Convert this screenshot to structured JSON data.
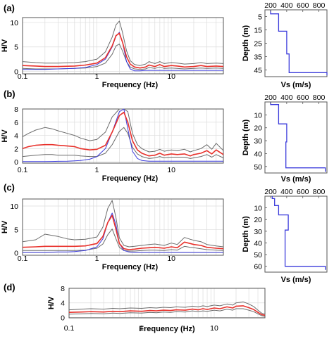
{
  "figure": {
    "colors": {
      "mean": "#e8312b",
      "std": "#6b6b6b",
      "theoretical": "#3b3bdb",
      "profile": "#3b3bdb"
    }
  },
  "chart_data": [
    {
      "panel": "(a)",
      "type": "line",
      "xscale": "log",
      "xlim": [
        0.1,
        50
      ],
      "ylim": [
        -0.5,
        11
      ],
      "xlabel": "Frequency (Hz)",
      "ylabel": "H/V",
      "xticks": [
        "0.1",
        "1",
        "10"
      ],
      "yticks": [
        "0",
        "5",
        "10"
      ],
      "x": [
        0.1,
        0.15,
        0.2,
        0.3,
        0.5,
        0.7,
        1.0,
        1.3,
        1.6,
        1.8,
        2.0,
        2.2,
        2.5,
        2.8,
        3.2,
        3.8,
        4.5,
        5,
        6,
        7,
        8,
        10,
        12,
        15,
        20,
        25,
        30,
        40,
        50
      ],
      "series": [
        {
          "role": "mean",
          "values": [
            1.2,
            1.1,
            1.0,
            1.0,
            1.1,
            1.3,
            1.7,
            2.8,
            5.2,
            7.3,
            7.8,
            6.0,
            3.0,
            1.5,
            0.9,
            0.7,
            0.9,
            1.3,
            1.0,
            1.4,
            1.0,
            1.2,
            1.1,
            0.9,
            1.0,
            1.2,
            1.0,
            1.1,
            1.0
          ]
        },
        {
          "role": "std-upper",
          "values": [
            2.0,
            1.8,
            1.7,
            1.7,
            1.8,
            2.0,
            2.5,
            4.0,
            7.0,
            9.5,
            10.3,
            8.0,
            4.2,
            2.2,
            1.4,
            1.2,
            1.5,
            2.0,
            1.6,
            2.0,
            1.6,
            1.8,
            1.7,
            1.5,
            1.6,
            1.8,
            1.6,
            1.7,
            1.6
          ]
        },
        {
          "role": "std-lower",
          "values": [
            0.6,
            0.5,
            0.5,
            0.5,
            0.6,
            0.7,
            1.0,
            1.7,
            3.5,
            5.2,
            5.6,
            4.2,
            2.0,
            0.9,
            0.5,
            0.4,
            0.5,
            0.8,
            0.6,
            0.9,
            0.6,
            0.7,
            0.6,
            0.5,
            0.6,
            0.7,
            0.6,
            0.7,
            0.6
          ]
        },
        {
          "role": "theoretical",
          "values": [
            0.4,
            0.4,
            0.4,
            0.5,
            0.6,
            0.8,
            1.4,
            2.5,
            5.0,
            7.2,
            8.0,
            6.0,
            2.0,
            0.5,
            0.1,
            0.1,
            0.2,
            0.2,
            0.2,
            0.2,
            0.2,
            0.2,
            0.2,
            0.2,
            0.2,
            0.2,
            0.2,
            0.2,
            0.2
          ]
        }
      ],
      "profile": {
        "xlabel": "Vs (m/s)",
        "ylabel": "Depth (m)",
        "xticks": [
          "200",
          "400",
          "600",
          "800"
        ],
        "yticks": [
          "5",
          "15",
          "25",
          "35",
          "45"
        ],
        "xlim": [
          130,
          900
        ],
        "ylim": [
          0,
          50
        ],
        "vs": [
          200,
          200,
          300,
          300,
          400,
          400,
          430,
          430,
          900,
          900
        ],
        "depth": [
          0,
          3,
          3,
          16,
          16,
          33,
          33,
          47,
          47,
          49
        ]
      }
    },
    {
      "panel": "(b)",
      "type": "line",
      "xscale": "log",
      "xlim": [
        0.1,
        50
      ],
      "ylim": [
        -0.2,
        8
      ],
      "xlabel": "Frequency (Hz)",
      "ylabel": "H/V",
      "xticks": [
        "0.1",
        "1",
        "10"
      ],
      "yticks": [
        "0",
        "2",
        "4",
        "6",
        "8"
      ],
      "x": [
        0.1,
        0.12,
        0.15,
        0.2,
        0.25,
        0.3,
        0.4,
        0.5,
        0.6,
        0.8,
        1.0,
        1.3,
        1.6,
        2.0,
        2.3,
        2.6,
        3.0,
        3.5,
        4,
        5,
        6,
        7,
        8,
        10,
        12,
        15,
        18,
        20,
        25,
        30,
        35,
        40,
        50
      ],
      "series": [
        {
          "role": "mean",
          "values": [
            2.0,
            2.3,
            2.5,
            2.6,
            2.6,
            2.5,
            2.4,
            2.3,
            2.0,
            1.8,
            1.9,
            2.5,
            4.5,
            7.0,
            7.5,
            6.0,
            3.2,
            1.8,
            1.3,
            0.9,
            1.0,
            1.3,
            1.0,
            1.2,
            1.1,
            1.2,
            0.9,
            1.1,
            1.3,
            1.7,
            1.2,
            1.8,
            1.1
          ]
        },
        {
          "role": "std-upper",
          "values": [
            3.8,
            4.3,
            4.8,
            5.2,
            5.0,
            4.7,
            4.3,
            4.0,
            3.6,
            3.2,
            3.4,
            4.5,
            6.8,
            9.0,
            9.0,
            7.6,
            4.3,
            2.6,
            2.0,
            1.5,
            1.6,
            1.9,
            1.6,
            1.8,
            1.7,
            1.9,
            1.5,
            1.7,
            2.0,
            2.6,
            1.9,
            2.8,
            1.7
          ]
        },
        {
          "role": "std-lower",
          "values": [
            0.8,
            0.9,
            1.0,
            1.1,
            1.1,
            1.0,
            1.0,
            1.0,
            0.9,
            0.8,
            0.8,
            1.3,
            2.6,
            4.6,
            5.2,
            4.3,
            2.2,
            1.2,
            0.8,
            0.5,
            0.6,
            0.8,
            0.6,
            0.7,
            0.7,
            0.7,
            0.5,
            0.6,
            0.8,
            1.1,
            0.7,
            1.1,
            0.6
          ]
        },
        {
          "role": "theoretical",
          "values": [
            0.05,
            0.05,
            0.05,
            0.05,
            0.06,
            0.08,
            0.1,
            0.15,
            0.2,
            0.4,
            0.8,
            2.0,
            4.5,
            7.6,
            8.2,
            5.0,
            1.6,
            0.5,
            0.2,
            0.1,
            0.1,
            0.1,
            0.1,
            0.1,
            0.1,
            0.1,
            0.1,
            0.1,
            0.1,
            0.1,
            0.1,
            0.1,
            0.1
          ]
        }
      ],
      "profile": {
        "xlabel": "Vs (m/s)",
        "ylabel": "Depth (m)",
        "xticks": [
          "200",
          "400",
          "600",
          "800"
        ],
        "yticks": [
          "10",
          "20",
          "30",
          "40",
          "50"
        ],
        "xlim": [
          130,
          900
        ],
        "ylim": [
          0,
          55
        ],
        "vs": [
          200,
          200,
          300,
          300,
          400,
          400,
          390,
          390,
          880,
          880
        ],
        "depth": [
          0,
          2,
          2,
          17,
          17,
          31,
          31,
          51,
          51,
          54
        ]
      }
    },
    {
      "panel": "(c)",
      "type": "line",
      "xscale": "log",
      "xlim": [
        0.1,
        50
      ],
      "ylim": [
        -0.5,
        11.5
      ],
      "xlabel": "Frequency (Hz)",
      "ylabel": "H/V",
      "xticks": [
        "0.1",
        "1",
        "10"
      ],
      "yticks": [
        "0",
        "5",
        "10"
      ],
      "x": [
        0.1,
        0.15,
        0.2,
        0.3,
        0.4,
        0.5,
        0.7,
        1.0,
        1.2,
        1.4,
        1.6,
        1.8,
        2.0,
        2.3,
        2.7,
        3.2,
        4,
        5,
        6,
        8,
        10,
        12,
        15,
        18,
        20,
        25,
        30,
        40,
        50
      ],
      "series": [
        {
          "role": "mean",
          "values": [
            1.2,
            1.3,
            1.4,
            1.4,
            1.4,
            1.4,
            1.5,
            2.0,
            3.5,
            6.5,
            8.0,
            5.0,
            2.0,
            0.9,
            0.7,
            0.8,
            1.0,
            1.1,
            1.2,
            1.0,
            1.3,
            1.1,
            2.3,
            2.0,
            1.8,
            1.6,
            1.2,
            1.0,
            0.9
          ]
        },
        {
          "role": "std-upper",
          "values": [
            2.4,
            2.8,
            4.0,
            3.5,
            3.0,
            2.8,
            2.9,
            3.4,
            5.5,
            9.5,
            11.2,
            7.5,
            3.2,
            1.6,
            1.3,
            1.4,
            1.6,
            1.8,
            1.9,
            1.6,
            2.1,
            1.8,
            3.3,
            2.9,
            2.7,
            2.4,
            1.8,
            1.5,
            1.3
          ]
        },
        {
          "role": "std-lower",
          "values": [
            0.5,
            0.5,
            0.5,
            0.5,
            0.5,
            0.5,
            0.6,
            1.0,
            1.9,
            3.9,
            5.1,
            3.0,
            1.2,
            0.5,
            0.4,
            0.4,
            0.5,
            0.6,
            0.6,
            0.5,
            0.7,
            0.6,
            1.4,
            1.2,
            1.1,
            0.9,
            0.7,
            0.6,
            0.5
          ]
        },
        {
          "role": "theoretical",
          "values": [
            0.1,
            0.1,
            0.1,
            0.2,
            0.2,
            0.3,
            0.5,
            1.3,
            3.0,
            6.5,
            8.5,
            6.0,
            2.0,
            0.5,
            0.2,
            0.1,
            0.1,
            0.1,
            0.1,
            0.1,
            0.1,
            0.1,
            0.1,
            0.1,
            0.1,
            0.1,
            0.1,
            0.1,
            0.1
          ]
        }
      ],
      "profile": {
        "xlabel": "Vs (m/s)",
        "ylabel": "Depth (m)",
        "xticks": [
          "200",
          "400",
          "600",
          "800"
        ],
        "yticks": [
          "10",
          "20",
          "30",
          "40",
          "50",
          "60"
        ],
        "xlim": [
          130,
          900
        ],
        "ylim": [
          0,
          65
        ],
        "vs": [
          220,
          220,
          250,
          250,
          300,
          300,
          420,
          420,
          380,
          380,
          880,
          880
        ],
        "depth": [
          0,
          2,
          2,
          8,
          8,
          16,
          16,
          29,
          29,
          60,
          60,
          63
        ]
      }
    },
    {
      "panel": "(d)",
      "type": "line",
      "xscale": "log",
      "xlim": [
        0.1,
        50
      ],
      "ylim": [
        -0.1,
        8
      ],
      "xlabel": "Frequency (Hz)",
      "ylabel": "H/V",
      "xticks": [
        "0.1",
        "1",
        "10"
      ],
      "yticks": [
        "0",
        "4",
        "8"
      ],
      "x": [
        0.1,
        0.15,
        0.2,
        0.3,
        0.4,
        0.5,
        0.7,
        1.0,
        1.3,
        1.6,
        2.0,
        2.5,
        3.0,
        4,
        5,
        6,
        7,
        8,
        10,
        12,
        15,
        18,
        20,
        25,
        30,
        35,
        40,
        45,
        50
      ],
      "series": [
        {
          "role": "mean",
          "values": [
            1.4,
            1.5,
            1.6,
            1.5,
            1.7,
            1.6,
            1.8,
            1.7,
            1.9,
            1.8,
            2.0,
            1.9,
            2.1,
            2.0,
            2.3,
            2.1,
            2.4,
            2.2,
            2.6,
            2.4,
            2.9,
            2.6,
            3.1,
            3.2,
            2.7,
            2.2,
            1.4,
            0.8,
            0.6
          ]
        },
        {
          "role": "std-upper",
          "values": [
            2.1,
            2.3,
            2.4,
            2.3,
            2.5,
            2.4,
            2.6,
            2.5,
            2.7,
            2.6,
            2.8,
            2.7,
            2.9,
            2.8,
            3.1,
            2.9,
            3.2,
            3.0,
            3.4,
            3.2,
            3.7,
            3.4,
            4.0,
            4.3,
            3.7,
            3.0,
            2.0,
            1.2,
            0.9
          ]
        },
        {
          "role": "std-lower",
          "values": [
            0.9,
            1.0,
            1.1,
            1.0,
            1.2,
            1.1,
            1.3,
            1.2,
            1.4,
            1.3,
            1.5,
            1.4,
            1.6,
            1.5,
            1.8,
            1.6,
            1.8,
            1.7,
            2.0,
            1.8,
            2.3,
            2.0,
            2.4,
            2.4,
            2.0,
            1.6,
            1.0,
            0.5,
            0.3
          ]
        }
      ]
    }
  ]
}
